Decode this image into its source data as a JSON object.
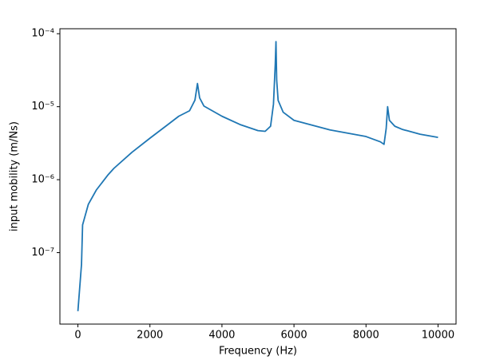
{
  "chart_data": {
    "type": "line",
    "x_label": "Frequency (Hz)",
    "y_label": "input mobility (m/Ns)",
    "x": [
      0,
      100,
      130,
      290,
      510,
      840,
      1000,
      1500,
      2000,
      2500,
      2800,
      3100,
      3250,
      3320,
      3380,
      3500,
      4000,
      4500,
      5000,
      5200,
      5350,
      5430,
      5480,
      5500,
      5520,
      5560,
      5700,
      6000,
      7000,
      8000,
      8400,
      8500,
      8560,
      8600,
      8650,
      8800,
      9000,
      9500,
      10000
    ],
    "values": [
      1.58e-08,
      6.9e-08,
      2.4e-07,
      4.6e-07,
      7.2e-07,
      1.17e-06,
      1.43e-06,
      2.37e-06,
      3.7e-06,
      5.7e-06,
      7.4e-06,
      8.8e-06,
      1.23e-05,
      2.08e-05,
      1.32e-05,
      1.02e-05,
      7.4e-06,
      5.7e-06,
      4.7e-06,
      4.6e-06,
      5.4e-06,
      1.08e-05,
      3.8e-05,
      7.8e-05,
      2.3e-05,
      1.22e-05,
      8.4e-06,
      6.5e-06,
      4.8e-06,
      3.9e-06,
      3.3e-06,
      3.05e-06,
      5e-06,
      1e-05,
      6.5e-06,
      5.4e-06,
      4.9e-06,
      4.2e-06,
      3.8e-06
    ],
    "color": "#1f77b4",
    "xlim": [
      -500,
      10500
    ],
    "xticks": [
      0,
      2000,
      4000,
      6000,
      8000,
      10000
    ],
    "ylim": [
      1.05e-08,
      0.000117
    ],
    "y_scale": "log",
    "yticks": [
      {
        "value": 1e-07,
        "label": "10⁻⁷"
      },
      {
        "value": 1e-06,
        "label": "10⁻⁶"
      },
      {
        "value": 1e-05,
        "label": "10⁻⁵"
      },
      {
        "value": 0.0001,
        "label": "10⁻⁴"
      }
    ]
  }
}
